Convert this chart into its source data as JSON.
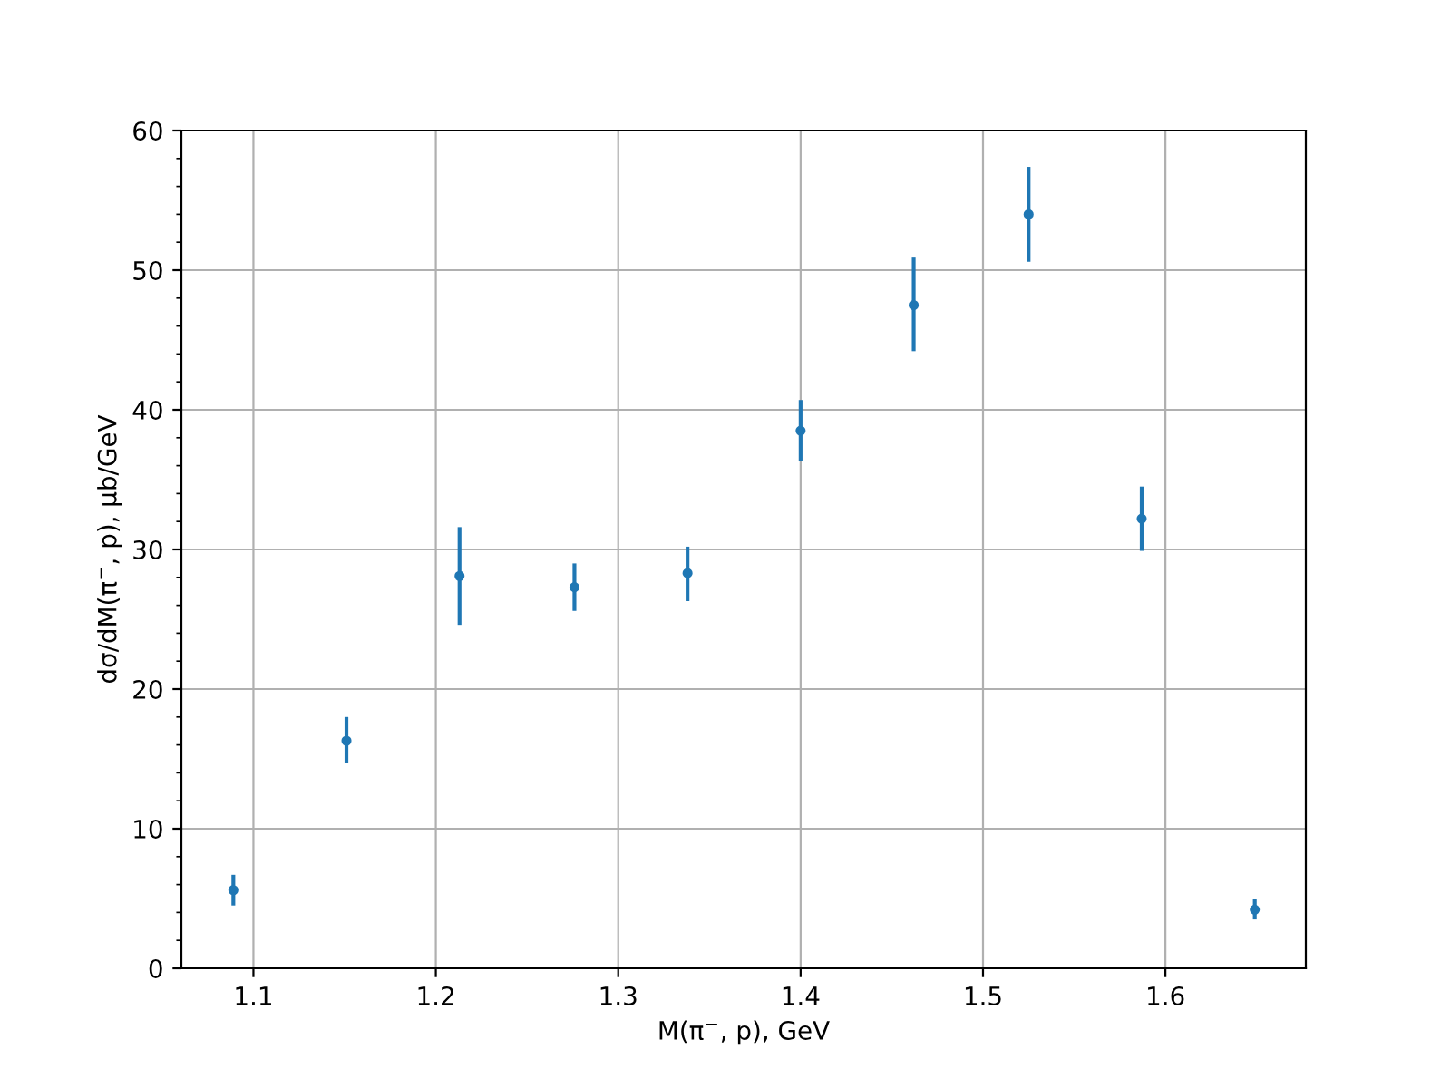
{
  "chart_data": {
    "type": "scatter",
    "xlabel": "M(π$^{−}$, p), GeV",
    "ylabel": "dσ/dM(π$^{−}$, p), μb/GeV",
    "x": [
      1.089,
      1.151,
      1.213,
      1.276,
      1.338,
      1.4,
      1.462,
      1.525,
      1.587,
      1.649
    ],
    "series": [
      {
        "color": "#1f77b4",
        "values": [
          5.6,
          16.3,
          28.1,
          27.3,
          28.3,
          38.5,
          47.5,
          54.0,
          32.2,
          4.2
        ],
        "errors": [
          [
            4.5,
            6.7
          ],
          [
            14.7,
            18.0
          ],
          [
            24.6,
            31.6
          ],
          [
            25.6,
            29.0
          ],
          [
            26.3,
            30.2
          ],
          [
            36.3,
            40.7
          ],
          [
            44.2,
            50.9
          ],
          [
            50.6,
            57.4
          ],
          [
            29.9,
            34.5
          ],
          [
            3.5,
            5.0
          ]
        ]
      }
    ],
    "xlim": [
      1.0605,
      1.677
    ],
    "xticks": [
      1.1,
      1.2,
      1.3,
      1.4,
      1.5,
      1.6
    ],
    "ylim": [
      0,
      60
    ],
    "yticks": [
      0,
      10,
      20,
      30,
      40,
      50,
      60
    ],
    "grid": true,
    "marker": "circle",
    "legend": false
  }
}
